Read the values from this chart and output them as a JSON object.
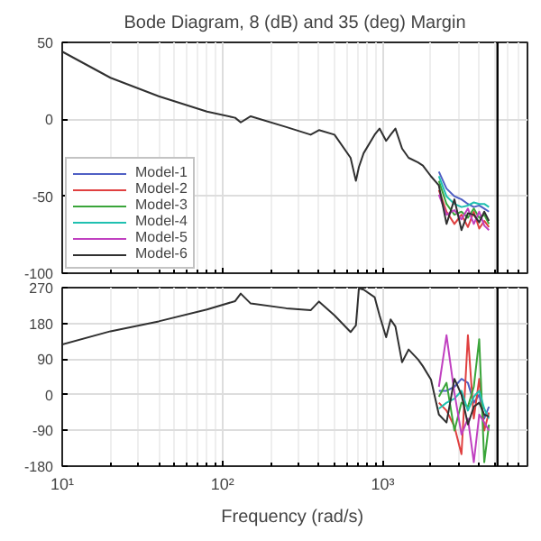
{
  "chart_data": [
    {
      "type": "line",
      "title": "Bode Diagram, 8 (dB) and 35 (deg) Margin",
      "log": "x",
      "grid": true,
      "legend": "bottom left",
      "tick_labels": "y",
      "x": [
        10,
        20,
        40,
        80,
        120,
        130,
        150,
        250,
        355,
        400,
        500,
        630,
        680,
        710,
        760,
        890,
        955,
        1050,
        1120,
        1200,
        1320,
        1450,
        1660,
        1780,
        2000,
        2240,
        2500,
        2800,
        3100,
        3400,
        3700,
        4000,
        4300,
        4600
      ],
      "xlim": [
        10,
        8000
      ],
      "xticks": [
        10,
        100,
        1000
      ],
      "ylim": [
        -100,
        50
      ],
      "yticks": [
        -100,
        -50,
        0,
        50
      ],
      "ref_lines": [
        {
          "axis": "x",
          "value": 5200,
          "color": "#000000"
        }
      ],
      "series": [
        {
          "name": "Model-1",
          "color": "#4f5fc4",
          "values": [
            null,
            null,
            null,
            null,
            null,
            null,
            null,
            null,
            null,
            null,
            null,
            null,
            null,
            null,
            null,
            null,
            null,
            null,
            null,
            null,
            null,
            null,
            null,
            null,
            null,
            -34,
            -45,
            -50,
            -52,
            -55,
            -57,
            -56,
            -58,
            -60
          ]
        },
        {
          "name": "Model-2",
          "color": "#e04040",
          "values": [
            null,
            null,
            null,
            null,
            null,
            null,
            null,
            null,
            null,
            null,
            null,
            null,
            null,
            null,
            null,
            null,
            null,
            null,
            null,
            null,
            null,
            null,
            null,
            null,
            null,
            -46,
            -60,
            -68,
            -62,
            -70,
            -60,
            -71,
            -66,
            -70
          ]
        },
        {
          "name": "Model-3",
          "color": "#3aa53a",
          "values": [
            null,
            null,
            null,
            null,
            null,
            null,
            null,
            null,
            null,
            null,
            null,
            null,
            null,
            null,
            null,
            null,
            null,
            null,
            null,
            null,
            null,
            null,
            null,
            null,
            null,
            -40,
            -55,
            -62,
            -60,
            -64,
            -58,
            -64,
            -62,
            -68
          ]
        },
        {
          "name": "Model-4",
          "color": "#20c0b0",
          "values": [
            null,
            null,
            null,
            null,
            null,
            null,
            null,
            null,
            null,
            null,
            null,
            null,
            null,
            null,
            null,
            null,
            null,
            null,
            null,
            null,
            null,
            null,
            null,
            null,
            null,
            -37,
            -50,
            -55,
            -57,
            -56,
            -54,
            -55,
            -55,
            -57
          ]
        },
        {
          "name": "Model-5",
          "color": "#c040c0",
          "values": [
            null,
            null,
            null,
            null,
            null,
            null,
            null,
            null,
            null,
            null,
            null,
            null,
            null,
            null,
            null,
            null,
            null,
            null,
            null,
            null,
            null,
            null,
            null,
            null,
            null,
            -49,
            -62,
            -59,
            -65,
            -58,
            -68,
            -60,
            -69,
            -72
          ]
        },
        {
          "name": "Model-6",
          "color": "#303030",
          "values": [
            44,
            27,
            15,
            5,
            1,
            -2,
            2,
            -5,
            -10,
            -7,
            -10,
            -25,
            -40,
            -31,
            -22,
            -10,
            -6,
            -14,
            -10,
            -6,
            -19,
            -25,
            -28,
            -30,
            -37,
            -43,
            -68,
            -52,
            -72,
            -61,
            -62,
            -67,
            -60,
            -66
          ]
        }
      ]
    },
    {
      "type": "line",
      "xlabel": "Frequency  (rad/s)",
      "log": "x",
      "grid": true,
      "x": [
        10,
        20,
        40,
        80,
        120,
        130,
        150,
        250,
        355,
        400,
        500,
        630,
        680,
        710,
        760,
        890,
        955,
        1050,
        1120,
        1200,
        1320,
        1450,
        1660,
        1780,
        2000,
        2240,
        2500,
        2800,
        3100,
        3400,
        3700,
        4000,
        4300,
        4600
      ],
      "xlim": [
        10,
        8000
      ],
      "xticks": [
        {
          "value": 10,
          "label": "10¹"
        },
        {
          "value": 100,
          "label": "10²"
        },
        {
          "value": 1000,
          "label": "10³"
        }
      ],
      "ylim": [
        -180,
        270
      ],
      "yticks": [
        -180,
        -90,
        0,
        90,
        180,
        270
      ],
      "ref_lines": [
        {
          "axis": "x",
          "value": 5200,
          "color": "#000000"
        }
      ],
      "series": [
        {
          "color": "#4f5fc4",
          "values": [
            null,
            null,
            null,
            null,
            null,
            null,
            null,
            null,
            null,
            null,
            null,
            null,
            null,
            null,
            null,
            null,
            null,
            null,
            null,
            null,
            null,
            null,
            null,
            null,
            null,
            10,
            10,
            20,
            40,
            30,
            -20,
            0,
            -60,
            -30
          ]
        },
        {
          "color": "#e04040",
          "values": [
            null,
            null,
            null,
            null,
            null,
            null,
            null,
            null,
            null,
            null,
            null,
            null,
            null,
            null,
            null,
            null,
            null,
            null,
            null,
            null,
            null,
            null,
            null,
            null,
            null,
            -20,
            -40,
            -80,
            -150,
            150,
            -60,
            40,
            -90,
            -45
          ]
        },
        {
          "color": "#3aa53a",
          "values": [
            null,
            null,
            null,
            null,
            null,
            null,
            null,
            null,
            null,
            null,
            null,
            null,
            null,
            null,
            null,
            null,
            null,
            null,
            null,
            null,
            null,
            null,
            null,
            null,
            null,
            -5,
            30,
            -90,
            -20,
            -30,
            20,
            140,
            -170,
            -75
          ]
        },
        {
          "color": "#20c0b0",
          "values": [
            null,
            null,
            null,
            null,
            null,
            null,
            null,
            null,
            null,
            null,
            null,
            null,
            null,
            null,
            null,
            null,
            null,
            null,
            null,
            null,
            null,
            null,
            null,
            null,
            null,
            -35,
            -20,
            -10,
            10,
            -40,
            -5,
            10,
            -35,
            -60
          ]
        },
        {
          "color": "#c040c0",
          "values": [
            null,
            null,
            null,
            null,
            null,
            null,
            null,
            null,
            null,
            null,
            null,
            null,
            null,
            null,
            null,
            null,
            null,
            null,
            null,
            null,
            null,
            null,
            null,
            null,
            null,
            20,
            150,
            5,
            -100,
            -60,
            -170,
            -50,
            -70,
            -90
          ]
        },
        {
          "color": "#303030",
          "values": [
            127,
            160,
            185,
            215,
            236,
            255,
            230,
            218,
            213,
            235,
            200,
            158,
            175,
            268,
            265,
            246,
            200,
            145,
            190,
            172,
            82,
            114,
            89,
            72,
            38,
            -50,
            -70,
            40,
            0,
            -75,
            -30,
            -20,
            -50,
            -55
          ]
        }
      ]
    }
  ]
}
